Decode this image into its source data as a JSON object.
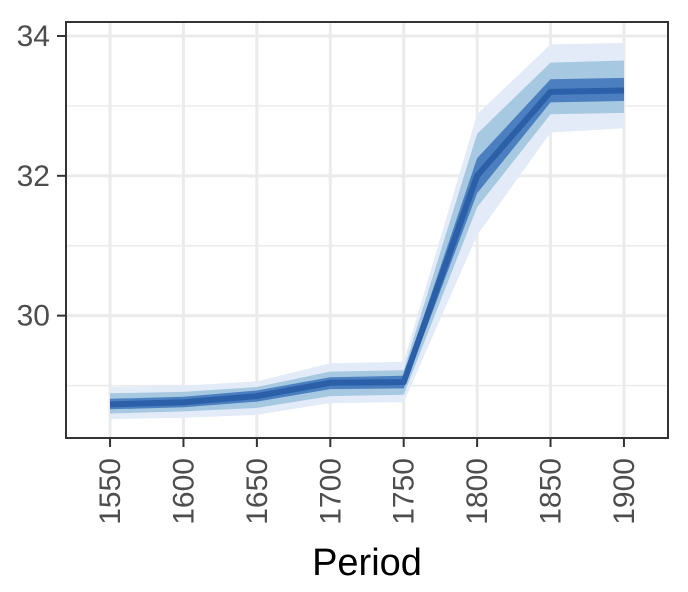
{
  "chart_data": {
    "type": "line",
    "title": "",
    "xlabel": "Period",
    "ylabel": "",
    "x": [
      1550,
      1600,
      1650,
      1700,
      1750,
      1800,
      1850,
      1900
    ],
    "xlim": [
      1520,
      1930
    ],
    "ylim": [
      28.25,
      34.2
    ],
    "xticks": [
      1550,
      1600,
      1650,
      1700,
      1750,
      1800,
      1850,
      1900
    ],
    "yticks": [
      30,
      32,
      34
    ],
    "grid": true,
    "legend": "none",
    "series": [
      {
        "values": [
          28.73,
          28.76,
          28.85,
          29.04,
          29.05,
          32.0,
          33.2,
          33.22
        ],
        "color": "#2b5fa8",
        "bands": [
          {
            "level": "outer",
            "color": "#e2ebf7",
            "lower": [
              28.52,
              28.54,
              28.58,
              28.75,
              28.76,
              31.15,
              32.62,
              32.68
            ],
            "upper": [
              28.98,
              29.0,
              29.06,
              29.32,
              29.34,
              32.88,
              33.88,
              33.9
            ]
          },
          {
            "level": "middle",
            "color": "#a6c8e0",
            "lower": [
              28.6,
              28.63,
              28.68,
              28.85,
              28.87,
              31.55,
              32.88,
              32.9
            ],
            "upper": [
              28.89,
              28.91,
              28.98,
              29.2,
              29.22,
              32.6,
              33.62,
              33.65
            ]
          },
          {
            "level": "inner",
            "color": "#4b7fbf",
            "lower": [
              28.66,
              28.69,
              28.77,
              28.95,
              28.96,
              31.75,
              33.05,
              33.07
            ],
            "upper": [
              28.81,
              28.84,
              28.93,
              29.12,
              29.14,
              32.25,
              33.38,
              33.4
            ]
          }
        ]
      }
    ],
    "colors": {
      "panel_border": "#333333",
      "grid": "#ebebeb",
      "tick_label": "#4d4d4d",
      "axis_title": "#000000"
    }
  }
}
